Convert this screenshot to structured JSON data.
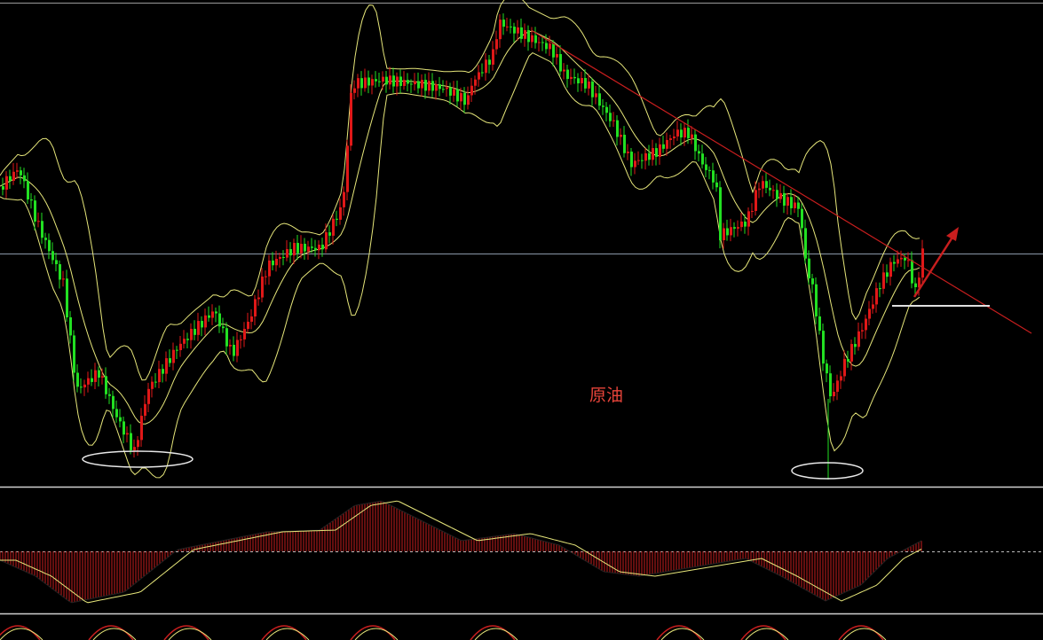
{
  "chart_label": "原油"
}
